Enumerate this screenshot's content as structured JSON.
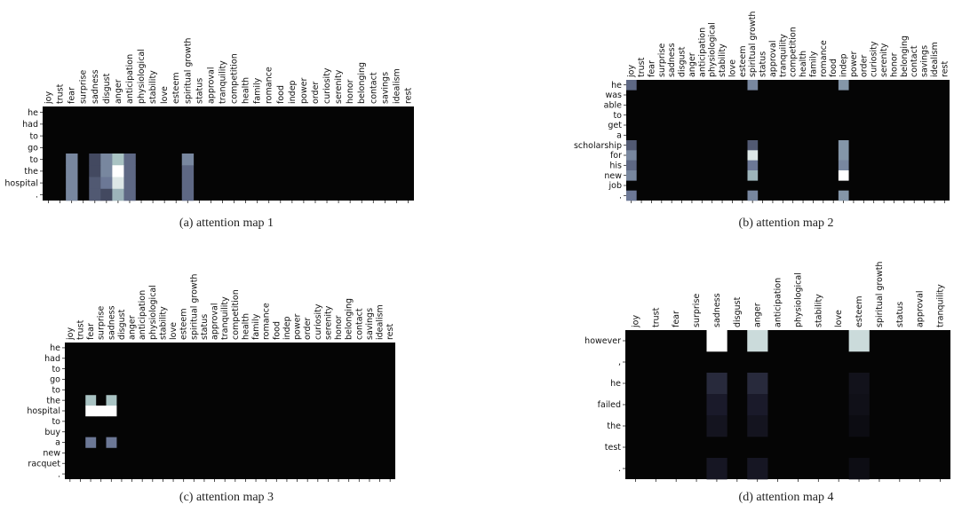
{
  "chart_data": [
    {
      "type": "heatmap",
      "caption": "(a)  attention map 1",
      "columns": [
        "joy",
        "trust",
        "fear",
        "surprise",
        "sadness",
        "disgust",
        "anger",
        "anticipation",
        "physiological",
        "stability",
        "love",
        "esteem",
        "spiritual growth",
        "status",
        "approval",
        "tranquility",
        "competition",
        "health",
        "family",
        "romance",
        "food",
        "indep",
        "power",
        "order",
        "curiosity",
        "serenity",
        "honor",
        "belonging",
        "contact",
        "savings",
        "idealism",
        "rest"
      ],
      "rows": [
        "he",
        "had",
        "to",
        "go",
        "to",
        "the",
        "hospital",
        "."
      ],
      "cells": [
        {
          "r": 4,
          "c": 2,
          "v": 0.55
        },
        {
          "r": 4,
          "c": 4,
          "v": 0.35
        },
        {
          "r": 4,
          "c": 5,
          "v": 0.55
        },
        {
          "r": 4,
          "c": 6,
          "v": 0.75
        },
        {
          "r": 4,
          "c": 7,
          "v": 0.45
        },
        {
          "r": 4,
          "c": 12,
          "v": 0.55
        },
        {
          "r": 5,
          "c": 2,
          "v": 0.55
        },
        {
          "r": 5,
          "c": 4,
          "v": 0.35
        },
        {
          "r": 5,
          "c": 5,
          "v": 0.55
        },
        {
          "r": 5,
          "c": 6,
          "v": 1.0
        },
        {
          "r": 5,
          "c": 7,
          "v": 0.45
        },
        {
          "r": 5,
          "c": 12,
          "v": 0.45
        },
        {
          "r": 6,
          "c": 2,
          "v": 0.55
        },
        {
          "r": 6,
          "c": 4,
          "v": 0.4
        },
        {
          "r": 6,
          "c": 5,
          "v": 0.5
        },
        {
          "r": 6,
          "c": 6,
          "v": 0.9
        },
        {
          "r": 6,
          "c": 7,
          "v": 0.45
        },
        {
          "r": 6,
          "c": 12,
          "v": 0.45
        },
        {
          "r": 7,
          "c": 2,
          "v": 0.55
        },
        {
          "r": 7,
          "c": 4,
          "v": 0.4
        },
        {
          "r": 7,
          "c": 5,
          "v": 0.35
        },
        {
          "r": 7,
          "c": 6,
          "v": 0.7
        },
        {
          "r": 7,
          "c": 7,
          "v": 0.45
        },
        {
          "r": 7,
          "c": 12,
          "v": 0.45
        }
      ]
    },
    {
      "type": "heatmap",
      "caption": "(b)  attention map 2",
      "columns": [
        "joy",
        "trust",
        "fear",
        "surprise",
        "sadness",
        "disgust",
        "anger",
        "anticipation",
        "physiological",
        "stability",
        "love",
        "esteem",
        "spiritual growth",
        "status",
        "approval",
        "tranquility",
        "competition",
        "health",
        "family",
        "romance",
        "food",
        "indep",
        "power",
        "order",
        "curiosity",
        "serenity",
        "honor",
        "belonging",
        "contact",
        "savings",
        "idealism",
        "rest"
      ],
      "rows": [
        "he",
        "was",
        "able",
        "to",
        "get",
        "a",
        "scholarship",
        "for",
        "his",
        "new",
        "job",
        "."
      ],
      "cells": [
        {
          "r": 0,
          "c": 0,
          "v": 0.45
        },
        {
          "r": 0,
          "c": 12,
          "v": 0.55
        },
        {
          "r": 0,
          "c": 21,
          "v": 0.6
        },
        {
          "r": 6,
          "c": 0,
          "v": 0.4
        },
        {
          "r": 6,
          "c": 12,
          "v": 0.4
        },
        {
          "r": 6,
          "c": 21,
          "v": 0.6
        },
        {
          "r": 7,
          "c": 0,
          "v": 0.55
        },
        {
          "r": 7,
          "c": 12,
          "v": 0.9
        },
        {
          "r": 7,
          "c": 21,
          "v": 0.6
        },
        {
          "r": 8,
          "c": 0,
          "v": 0.45
        },
        {
          "r": 8,
          "c": 12,
          "v": 0.5
        },
        {
          "r": 8,
          "c": 21,
          "v": 0.55
        },
        {
          "r": 9,
          "c": 0,
          "v": 0.55
        },
        {
          "r": 9,
          "c": 12,
          "v": 0.7
        },
        {
          "r": 9,
          "c": 21,
          "v": 1.0
        },
        {
          "r": 11,
          "c": 0,
          "v": 0.5
        },
        {
          "r": 11,
          "c": 12,
          "v": 0.55
        },
        {
          "r": 11,
          "c": 21,
          "v": 0.6
        }
      ]
    },
    {
      "type": "heatmap",
      "caption": "(c)  attention map 3",
      "columns": [
        "joy",
        "trust",
        "fear",
        "surprise",
        "sadness",
        "disgust",
        "anger",
        "anticipation",
        "physiological",
        "stability",
        "love",
        "esteem",
        "spiritual growth",
        "status",
        "approval",
        "tranquility",
        "competition",
        "health",
        "family",
        "romance",
        "food",
        "indep",
        "power",
        "order",
        "curiosity",
        "serenity",
        "honor",
        "belonging",
        "contact",
        "savings",
        "idealism",
        "rest"
      ],
      "rows": [
        "he",
        "had",
        "to",
        "go",
        "to",
        "the",
        "hospital",
        "to",
        "buy",
        "a",
        "new",
        "racquet",
        "."
      ],
      "cells": [
        {
          "r": 5,
          "c": 2,
          "v": 0.75
        },
        {
          "r": 5,
          "c": 4,
          "v": 0.75
        },
        {
          "r": 6,
          "c": 2,
          "v": 1.0
        },
        {
          "r": 6,
          "c": 3,
          "v": 1.0
        },
        {
          "r": 6,
          "c": 4,
          "v": 1.0
        },
        {
          "r": 9,
          "c": 2,
          "v": 0.5
        },
        {
          "r": 9,
          "c": 4,
          "v": 0.5
        }
      ]
    },
    {
      "type": "heatmap",
      "caption": "(d)  attention map 4",
      "columns": [
        "joy",
        "trust",
        "fear",
        "surprise",
        "sadness",
        "disgust",
        "anger",
        "anticipation",
        "physiological",
        "stability",
        "love",
        "esteem",
        "spiritual growth",
        "status",
        "approval",
        "tranquility"
      ],
      "rows": [
        "however",
        ",",
        "he",
        "failed",
        "the",
        "test",
        "."
      ],
      "cells": [
        {
          "r": 0,
          "c": 4,
          "v": 1.0
        },
        {
          "r": 0,
          "c": 6,
          "v": 0.85
        },
        {
          "r": 0,
          "c": 11,
          "v": 0.85
        },
        {
          "r": 2,
          "c": 4,
          "v": 0.25
        },
        {
          "r": 2,
          "c": 6,
          "v": 0.25
        },
        {
          "r": 2,
          "c": 11,
          "v": 0.12
        },
        {
          "r": 3,
          "c": 4,
          "v": 0.2
        },
        {
          "r": 3,
          "c": 6,
          "v": 0.2
        },
        {
          "r": 3,
          "c": 11,
          "v": 0.1
        },
        {
          "r": 4,
          "c": 4,
          "v": 0.14
        },
        {
          "r": 4,
          "c": 6,
          "v": 0.14
        },
        {
          "r": 4,
          "c": 11,
          "v": 0.07
        },
        {
          "r": 6,
          "c": 4,
          "v": 0.16
        },
        {
          "r": 6,
          "c": 6,
          "v": 0.16
        },
        {
          "r": 6,
          "c": 11,
          "v": 0.08
        }
      ]
    }
  ],
  "colors": {
    "background_cell": "#050505",
    "low": "#1a1a2a",
    "mid": "#6c7896",
    "high": "#a9c3c3",
    "max": "#ffffff"
  }
}
